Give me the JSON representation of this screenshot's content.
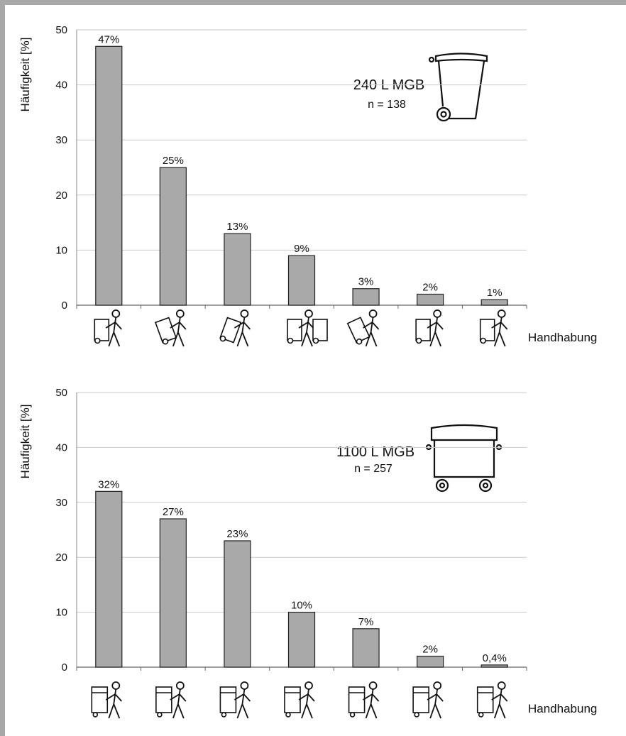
{
  "colors": {
    "bar": "#a9a9a9",
    "bar_stroke": "#222222",
    "grid": "#c9c9c9",
    "frame": "#a8a8a8"
  },
  "chart_data": [
    {
      "type": "bar",
      "title": "240 L MGB",
      "subtitle": "n = 138",
      "ylabel": "Häufigkeit [%]",
      "xlabel": "Handhabung",
      "ylim": [
        0,
        50
      ],
      "yticks": [
        0,
        10,
        20,
        30,
        40,
        50
      ],
      "grid": true,
      "categories": [
        "",
        "",
        "",
        "",
        "",
        "",
        ""
      ],
      "values": [
        47,
        25,
        13,
        9,
        3,
        2,
        1
      ],
      "data_labels": [
        "47%",
        "25%",
        "13%",
        "9%",
        "3%",
        "2%",
        "1%"
      ],
      "icon": "wheelie-bin-240-icon",
      "category_icons": [
        "person-pulling-bin-icon",
        "person-pushing-tilted-bin-icon",
        "person-pulling-tilted-bin-icon",
        "person-moving-two-bins-icon",
        "person-pushing-tilted-bin-icon",
        "person-pulling-upright-bin-icon",
        "person-pushing-bin-icon"
      ]
    },
    {
      "type": "bar",
      "title": "1100 L MGB",
      "subtitle": "n = 257",
      "ylabel": "Häufigkeit [%]",
      "xlabel": "Handhabung",
      "ylim": [
        0,
        50
      ],
      "yticks": [
        0,
        10,
        20,
        30,
        40,
        50
      ],
      "grid": true,
      "categories": [
        "",
        "",
        "",
        "",
        "",
        "",
        ""
      ],
      "values": [
        32,
        27,
        23,
        10,
        7,
        2,
        0.4
      ],
      "data_labels": [
        "32%",
        "27%",
        "23%",
        "10%",
        "7%",
        "2%",
        "0,4%"
      ],
      "icon": "large-container-1100-icon",
      "category_icons": [
        "person-pulling-container-icon",
        "person-pushing-container-icon",
        "person-pulling-container-icon",
        "person-steering-container-icon",
        "person-pulling-container-icon",
        "person-pushing-container-icon",
        "person-pushing-container-icon"
      ]
    }
  ]
}
